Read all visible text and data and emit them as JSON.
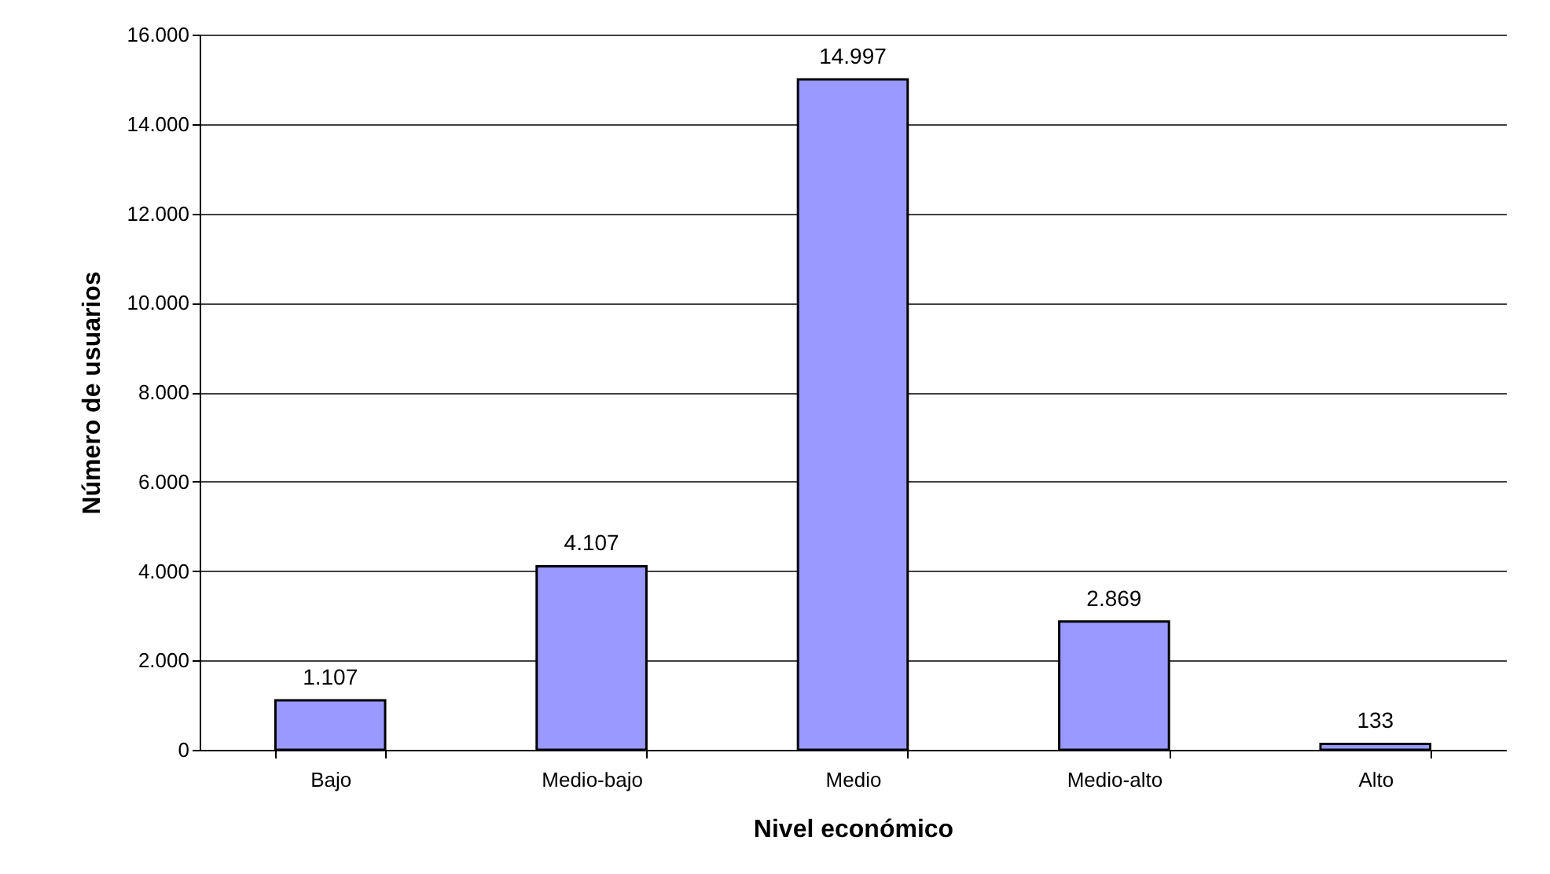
{
  "chart_data": {
    "type": "bar",
    "xlabel": "Nivel económico",
    "ylabel": "Número de usuarios",
    "categories": [
      "Bajo",
      "Medio-bajo",
      "Medio",
      "Medio-alto",
      "Alto"
    ],
    "values": [
      1107,
      4107,
      14997,
      2869,
      133
    ],
    "value_labels": [
      "1.107",
      "4.107",
      "14.997",
      "2.869",
      "133"
    ],
    "color": "#9999ff",
    "ylim": [
      0,
      16000
    ],
    "yticks": [
      {
        "value": 0,
        "label": "0"
      },
      {
        "value": 2000,
        "label": "2.000"
      },
      {
        "value": 4000,
        "label": "4.000"
      },
      {
        "value": 6000,
        "label": "6.000"
      },
      {
        "value": 8000,
        "label": "8.000"
      },
      {
        "value": 10000,
        "label": "10.000"
      },
      {
        "value": 12000,
        "label": "12.000"
      },
      {
        "value": 14000,
        "label": "14.000"
      },
      {
        "value": 16000,
        "label": "16.000"
      }
    ],
    "grid": "y"
  }
}
